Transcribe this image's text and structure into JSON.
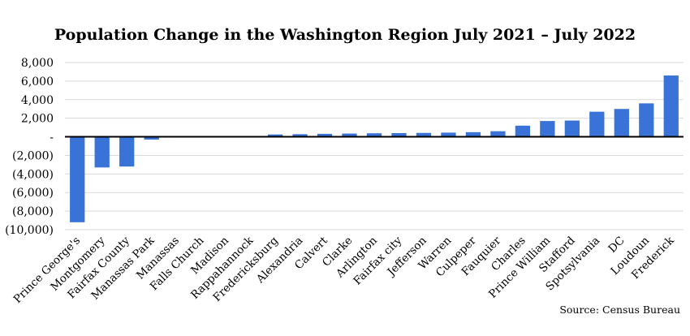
{
  "chart_data": {
    "type": "bar",
    "title": "Population Change in the Washington Region July 2021 – July 2022",
    "source": "Source: Census Bureau",
    "xlabel": "",
    "ylabel": "",
    "ylim": [
      -10000,
      8000
    ],
    "yticks": [
      8000,
      6000,
      4000,
      2000,
      0,
      -2000,
      -4000,
      -6000,
      -8000,
      -10000
    ],
    "ytick_labels": [
      "8,000",
      "6,000",
      "4,000",
      "2,000",
      "-",
      "(2,000)",
      "(4,000)",
      "(6,000)",
      "(8,000)",
      "(10,000)"
    ],
    "grid": true,
    "bar_color": "#3a73d8",
    "categories": [
      "Prince George's",
      "Montgomery",
      "Fairfax County",
      "Manassas Park",
      "Manassas",
      "Falls Church",
      "Madison",
      "Rappahannock",
      "Fredericksburg",
      "Alexandria",
      "Calvert",
      "Clarke",
      "Arlington",
      "Fairfax city",
      "Jefferson",
      "Warren",
      "Culpeper",
      "Fauquier",
      "Charles",
      "Prince William",
      "Stafford",
      "Spotsylvania",
      "DC",
      "Loudoun",
      "Frederick"
    ],
    "values": [
      -9200,
      -3300,
      -3200,
      -300,
      0,
      0,
      0,
      0,
      250,
      280,
      320,
      350,
      380,
      400,
      420,
      450,
      500,
      600,
      1200,
      1700,
      1750,
      2700,
      3000,
      3600,
      6600
    ]
  }
}
